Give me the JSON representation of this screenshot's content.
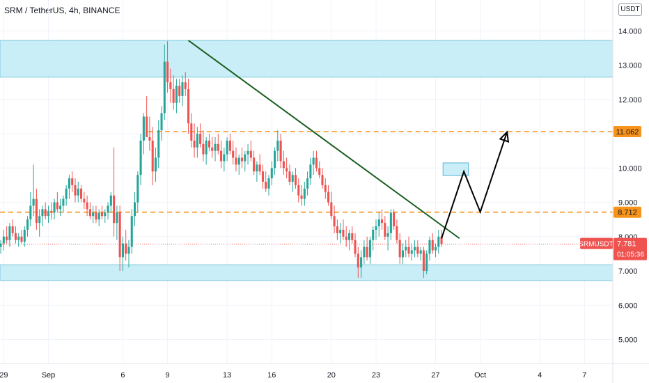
{
  "header": {
    "title": "SRM / TetherUS, 4h, BINANCE",
    "currency_button": "USDT"
  },
  "colors": {
    "up": "#26a69a",
    "down": "#ef5350",
    "zone_fill": "#c9eef7",
    "zone_stroke": "#7ec8dc",
    "dashed_level": "#f7931a",
    "trendline": "#1b5e20",
    "projection": "#000000",
    "target_box_fill": "#c9eef7",
    "target_box_stroke": "#5bb6d6",
    "price_tag_bg": "#ef5350",
    "level_tag_bg": "#f7931a"
  },
  "price_tag": {
    "symbol": "SRMUSDT",
    "price": "7.781",
    "countdown": "01:05:36"
  },
  "chart_data": {
    "type": "candlestick",
    "title": "SRM / TetherUS, 4h, BINANCE",
    "ylim": [
      4.3,
      14.9
    ],
    "y_ticks": [
      "5.000",
      "6.000",
      "7.000",
      "8.000",
      "9.000",
      "10.000",
      "11.000",
      "12.000",
      "13.000",
      "14.000"
    ],
    "x_ticks": [
      "29",
      "Sep",
      "6",
      "9",
      "13",
      "16",
      "20",
      "23",
      "27",
      "Oct",
      "4",
      "7"
    ],
    "x_tick_days": [
      29,
      32,
      37,
      40,
      44,
      47,
      51,
      54,
      58,
      61,
      65,
      68
    ],
    "x_range_days": [
      28.75,
      69.9
    ],
    "grid": true,
    "zones": [
      {
        "from": 12.65,
        "to": 13.72
      },
      {
        "from": 6.72,
        "to": 7.18
      }
    ],
    "levels": [
      {
        "value": 11.062,
        "label": "11.062",
        "start_day": 38.7
      },
      {
        "value": 8.712,
        "label": "8.712",
        "start_day": 28.75
      }
    ],
    "trendline": {
      "from": {
        "day": 41.4,
        "value": 13.72
      },
      "to": {
        "day": 59.6,
        "value": 7.95
      }
    },
    "projection_path": [
      {
        "day": 58.4,
        "value": 7.95
      },
      {
        "day": 59.9,
        "value": 9.9
      },
      {
        "day": 61.0,
        "value": 8.72
      },
      {
        "day": 62.8,
        "value": 11.05
      }
    ],
    "target_box": {
      "day_from": 58.5,
      "day_to": 60.2,
      "value_from": 9.78,
      "value_to": 10.15
    },
    "last_price": 7.781,
    "candles": [
      [
        28.8,
        7.7,
        7.9,
        7.5,
        7.8
      ],
      [
        29.0,
        7.8,
        8.2,
        7.6,
        8.0
      ],
      [
        29.2,
        8.0,
        8.3,
        7.8,
        7.9
      ],
      [
        29.4,
        7.9,
        8.4,
        7.7,
        8.3
      ],
      [
        29.6,
        8.3,
        8.5,
        8.0,
        8.1
      ],
      [
        29.8,
        8.1,
        8.3,
        7.8,
        7.9
      ],
      [
        30.0,
        7.9,
        8.1,
        7.7,
        8.0
      ],
      [
        30.2,
        8.0,
        8.2,
        7.8,
        7.85
      ],
      [
        30.4,
        7.85,
        8.3,
        7.7,
        8.2
      ],
      [
        30.6,
        8.2,
        8.6,
        8.0,
        8.5
      ],
      [
        30.8,
        8.5,
        9.3,
        8.3,
        8.9
      ],
      [
        31.0,
        8.9,
        10.1,
        8.6,
        9.1
      ],
      [
        31.2,
        9.1,
        9.4,
        8.2,
        8.4
      ],
      [
        31.4,
        8.4,
        8.8,
        8.0,
        8.6
      ],
      [
        31.6,
        8.6,
        8.9,
        8.3,
        8.8
      ],
      [
        31.8,
        8.8,
        9.0,
        8.5,
        8.6
      ],
      [
        32.0,
        8.6,
        8.9,
        8.4,
        8.75
      ],
      [
        32.2,
        8.75,
        9.0,
        8.5,
        8.7
      ],
      [
        32.4,
        8.7,
        9.1,
        8.5,
        9.0
      ],
      [
        32.6,
        9.0,
        9.3,
        8.7,
        8.8
      ],
      [
        32.8,
        8.8,
        9.1,
        8.6,
        8.9
      ],
      [
        33.0,
        8.9,
        9.2,
        8.7,
        9.1
      ],
      [
        33.2,
        9.1,
        9.5,
        8.9,
        9.4
      ],
      [
        33.4,
        9.4,
        9.8,
        9.1,
        9.7
      ],
      [
        33.6,
        9.7,
        9.9,
        9.3,
        9.5
      ],
      [
        33.8,
        9.5,
        9.7,
        9.0,
        9.2
      ],
      [
        34.0,
        9.2,
        9.6,
        9.0,
        9.4
      ],
      [
        34.2,
        9.4,
        9.5,
        9.0,
        9.1
      ],
      [
        34.4,
        9.1,
        9.3,
        8.8,
        9.0
      ],
      [
        34.6,
        9.0,
        9.2,
        8.6,
        8.8
      ],
      [
        34.8,
        8.8,
        9.0,
        8.5,
        8.6
      ],
      [
        35.0,
        8.6,
        8.9,
        8.4,
        8.7
      ],
      [
        35.2,
        8.7,
        8.9,
        8.4,
        8.5
      ],
      [
        35.4,
        8.5,
        8.8,
        8.3,
        8.7
      ],
      [
        35.6,
        8.7,
        8.9,
        8.5,
        8.6
      ],
      [
        35.8,
        8.6,
        8.8,
        8.4,
        8.7
      ],
      [
        36.0,
        8.7,
        9.0,
        8.5,
        8.9
      ],
      [
        36.2,
        8.9,
        9.3,
        8.7,
        9.2
      ],
      [
        36.4,
        9.2,
        10.6,
        8.0,
        8.4
      ],
      [
        36.6,
        8.4,
        8.9,
        7.9,
        8.7
      ],
      [
        36.8,
        8.7,
        8.9,
        7.0,
        7.4
      ],
      [
        37.0,
        7.4,
        8.0,
        7.0,
        7.8
      ],
      [
        37.2,
        7.8,
        8.2,
        7.3,
        7.5
      ],
      [
        37.4,
        7.5,
        7.9,
        7.1,
        7.7
      ],
      [
        37.6,
        7.7,
        8.8,
        7.5,
        8.6
      ],
      [
        37.8,
        8.6,
        9.3,
        8.3,
        9.0
      ],
      [
        38.0,
        9.0,
        9.9,
        8.7,
        9.8
      ],
      [
        38.2,
        9.8,
        11.0,
        9.5,
        10.8
      ],
      [
        38.4,
        10.8,
        11.6,
        10.4,
        11.5
      ],
      [
        38.6,
        11.5,
        12.1,
        11.0,
        10.9
      ],
      [
        38.8,
        10.9,
        11.5,
        10.5,
        10.8
      ],
      [
        39.0,
        10.8,
        11.2,
        9.5,
        9.9
      ],
      [
        39.2,
        9.9,
        10.6,
        9.6,
        10.3
      ],
      [
        39.4,
        10.3,
        11.4,
        10.0,
        11.1
      ],
      [
        39.6,
        11.1,
        11.8,
        10.8,
        11.6
      ],
      [
        39.8,
        11.6,
        13.6,
        11.4,
        13.1
      ],
      [
        40.0,
        13.1,
        13.7,
        12.2,
        12.5
      ],
      [
        40.2,
        12.5,
        12.9,
        11.9,
        12.3
      ],
      [
        40.4,
        12.3,
        12.7,
        11.7,
        11.9
      ],
      [
        40.6,
        11.9,
        12.6,
        11.6,
        12.4
      ],
      [
        40.8,
        12.4,
        12.6,
        11.9,
        12.1
      ],
      [
        41.0,
        12.1,
        12.7,
        11.8,
        12.5
      ],
      [
        41.2,
        12.5,
        12.8,
        12.1,
        12.3
      ],
      [
        41.4,
        12.3,
        12.6,
        11.0,
        11.3
      ],
      [
        41.6,
        11.3,
        11.6,
        10.6,
        10.8
      ],
      [
        41.8,
        10.8,
        11.3,
        10.3,
        10.6
      ],
      [
        42.0,
        10.6,
        11.2,
        10.3,
        11.0
      ],
      [
        42.2,
        11.0,
        11.3,
        10.6,
        10.7
      ],
      [
        42.4,
        10.7,
        11.1,
        10.2,
        10.4
      ],
      [
        42.6,
        10.4,
        10.9,
        10.1,
        10.8
      ],
      [
        42.8,
        10.8,
        11.0,
        10.5,
        10.6
      ],
      [
        43.0,
        10.6,
        10.9,
        10.3,
        10.5
      ],
      [
        43.2,
        10.5,
        10.9,
        10.2,
        10.7
      ],
      [
        43.4,
        10.7,
        11.0,
        10.4,
        10.5
      ],
      [
        43.6,
        10.5,
        10.8,
        10.0,
        10.2
      ],
      [
        43.8,
        10.2,
        10.6,
        9.9,
        10.4
      ],
      [
        44.0,
        10.4,
        10.9,
        10.2,
        10.8
      ],
      [
        44.2,
        10.8,
        11.0,
        10.4,
        10.5
      ],
      [
        44.4,
        10.5,
        10.8,
        10.1,
        10.3
      ],
      [
        44.6,
        10.3,
        10.6,
        9.9,
        10.1
      ],
      [
        44.8,
        10.1,
        10.4,
        9.8,
        10.3
      ],
      [
        45.0,
        10.3,
        10.6,
        10.0,
        10.2
      ],
      [
        45.2,
        10.2,
        10.5,
        9.9,
        10.4
      ],
      [
        45.4,
        10.4,
        10.7,
        10.1,
        10.5
      ],
      [
        45.6,
        10.5,
        10.8,
        10.2,
        10.3
      ],
      [
        45.8,
        10.3,
        10.5,
        9.8,
        9.9
      ],
      [
        46.0,
        9.9,
        10.2,
        9.6,
        10.1
      ],
      [
        46.2,
        10.1,
        10.4,
        9.8,
        9.9
      ],
      [
        46.4,
        9.9,
        10.1,
        9.4,
        9.6
      ],
      [
        46.6,
        9.6,
        9.9,
        9.3,
        9.4
      ],
      [
        46.8,
        9.4,
        9.8,
        9.2,
        9.7
      ],
      [
        47.0,
        9.7,
        10.2,
        9.5,
        10.0
      ],
      [
        47.2,
        10.0,
        10.6,
        9.8,
        10.5
      ],
      [
        47.4,
        10.5,
        11.1,
        10.2,
        10.8
      ],
      [
        47.6,
        10.8,
        11.0,
        10.0,
        10.2
      ],
      [
        47.8,
        10.2,
        10.5,
        9.8,
        10.0
      ],
      [
        48.0,
        10.0,
        10.3,
        9.7,
        9.9
      ],
      [
        48.2,
        9.9,
        10.1,
        9.5,
        9.6
      ],
      [
        48.4,
        9.6,
        9.9,
        9.3,
        9.8
      ],
      [
        48.6,
        9.8,
        10.0,
        9.4,
        9.5
      ],
      [
        48.8,
        9.5,
        9.7,
        9.0,
        9.2
      ],
      [
        49.0,
        9.2,
        9.5,
        8.9,
        9.1
      ],
      [
        49.2,
        9.1,
        9.6,
        8.9,
        9.4
      ],
      [
        49.4,
        9.4,
        9.9,
        9.2,
        9.7
      ],
      [
        49.6,
        9.7,
        10.3,
        9.5,
        10.1
      ],
      [
        49.8,
        10.1,
        10.5,
        9.8,
        10.3
      ],
      [
        50.0,
        10.3,
        10.5,
        9.9,
        10.0
      ],
      [
        50.2,
        10.0,
        10.2,
        9.7,
        9.8
      ],
      [
        50.4,
        9.8,
        10.0,
        9.4,
        9.5
      ],
      [
        50.6,
        9.5,
        9.7,
        9.1,
        9.3
      ],
      [
        50.8,
        9.3,
        9.5,
        8.9,
        9.0
      ],
      [
        51.0,
        9.0,
        9.3,
        8.5,
        8.6
      ],
      [
        51.2,
        8.6,
        8.9,
        8.1,
        8.3
      ],
      [
        51.4,
        8.3,
        8.5,
        7.9,
        8.1
      ],
      [
        51.6,
        8.1,
        8.4,
        7.8,
        8.2
      ],
      [
        51.8,
        8.2,
        8.5,
        7.9,
        8.0
      ],
      [
        52.0,
        8.0,
        8.3,
        7.7,
        7.9
      ],
      [
        52.2,
        7.9,
        8.2,
        7.6,
        8.1
      ],
      [
        52.4,
        8.1,
        8.3,
        7.8,
        7.9
      ],
      [
        52.6,
        7.9,
        8.1,
        7.4,
        7.5
      ],
      [
        52.8,
        7.5,
        7.7,
        6.8,
        7.1
      ],
      [
        53.0,
        7.1,
        7.6,
        6.8,
        7.4
      ],
      [
        53.2,
        7.4,
        7.9,
        7.2,
        7.7
      ],
      [
        53.4,
        7.7,
        8.0,
        7.3,
        7.4
      ],
      [
        53.6,
        7.4,
        8.0,
        7.2,
        7.9
      ],
      [
        53.8,
        7.9,
        8.3,
        7.6,
        8.2
      ],
      [
        54.0,
        8.2,
        8.5,
        7.9,
        8.3
      ],
      [
        54.2,
        8.3,
        8.7,
        8.0,
        8.5
      ],
      [
        54.4,
        8.5,
        8.8,
        8.2,
        8.4
      ],
      [
        54.6,
        8.4,
        8.6,
        7.9,
        8.0
      ],
      [
        54.8,
        8.0,
        8.3,
        7.6,
        8.1
      ],
      [
        55.0,
        8.1,
        8.8,
        7.9,
        8.7
      ],
      [
        55.2,
        8.7,
        8.8,
        8.2,
        8.3
      ],
      [
        55.4,
        8.3,
        8.5,
        7.8,
        7.9
      ],
      [
        55.6,
        7.9,
        8.1,
        7.2,
        7.4
      ],
      [
        55.8,
        7.4,
        7.8,
        7.2,
        7.6
      ],
      [
        56.0,
        7.6,
        7.9,
        7.4,
        7.7
      ],
      [
        56.2,
        7.7,
        8.0,
        7.4,
        7.5
      ],
      [
        56.4,
        7.5,
        7.8,
        7.3,
        7.6
      ],
      [
        56.6,
        7.6,
        7.9,
        7.4,
        7.7
      ],
      [
        56.8,
        7.7,
        7.9,
        7.4,
        7.5
      ],
      [
        57.0,
        7.5,
        7.7,
        7.3,
        7.6
      ],
      [
        57.2,
        7.6,
        7.7,
        6.8,
        7.0
      ],
      [
        57.4,
        7.0,
        7.6,
        6.9,
        7.5
      ],
      [
        57.6,
        7.5,
        8.0,
        7.3,
        7.9
      ],
      [
        57.8,
        7.9,
        8.1,
        7.5,
        7.6
      ],
      [
        58.0,
        7.6,
        7.8,
        7.4,
        7.7
      ],
      [
        58.2,
        7.7,
        8.2,
        7.5,
        8.0
      ],
      [
        58.4,
        8.0,
        8.2,
        7.7,
        7.78
      ]
    ]
  }
}
